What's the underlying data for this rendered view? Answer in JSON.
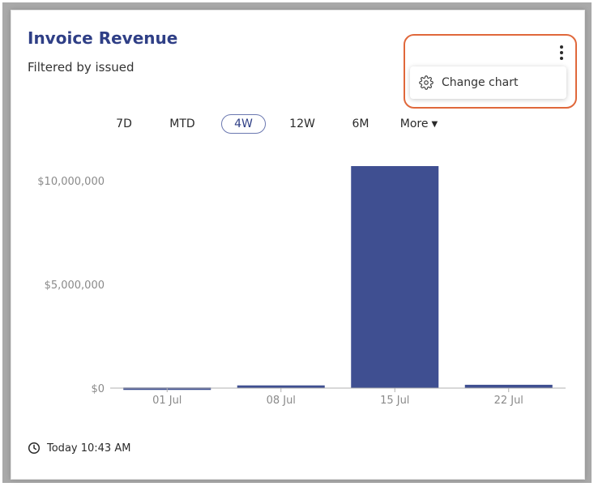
{
  "widget": {
    "title": "Invoice Revenue",
    "subtitle": "Filtered by issued",
    "menu_item_label": "Change chart",
    "timestamp": "Today 10:43 AM"
  },
  "ranges": [
    {
      "label": "7D",
      "active": false
    },
    {
      "label": "MTD",
      "active": false
    },
    {
      "label": "4W",
      "active": true
    },
    {
      "label": "12W",
      "active": false
    },
    {
      "label": "6M",
      "active": false
    },
    {
      "label": "More",
      "active": false
    }
  ],
  "colors": {
    "bar": "#3f4f91",
    "title": "#2f3f86",
    "highlight": "#e0683b"
  },
  "chart_data": {
    "type": "bar",
    "categories": [
      "01 Jul",
      "08 Jul",
      "15 Jul",
      "22 Jul"
    ],
    "values": [
      30000,
      130000,
      10700000,
      160000
    ],
    "ytick_values": [
      0,
      5000000,
      10000000
    ],
    "ytick_labels": [
      "$0",
      "$5,000,000",
      "$10,000,000"
    ],
    "ylim": [
      0,
      10700000
    ],
    "title": "",
    "xlabel": "",
    "ylabel": ""
  }
}
